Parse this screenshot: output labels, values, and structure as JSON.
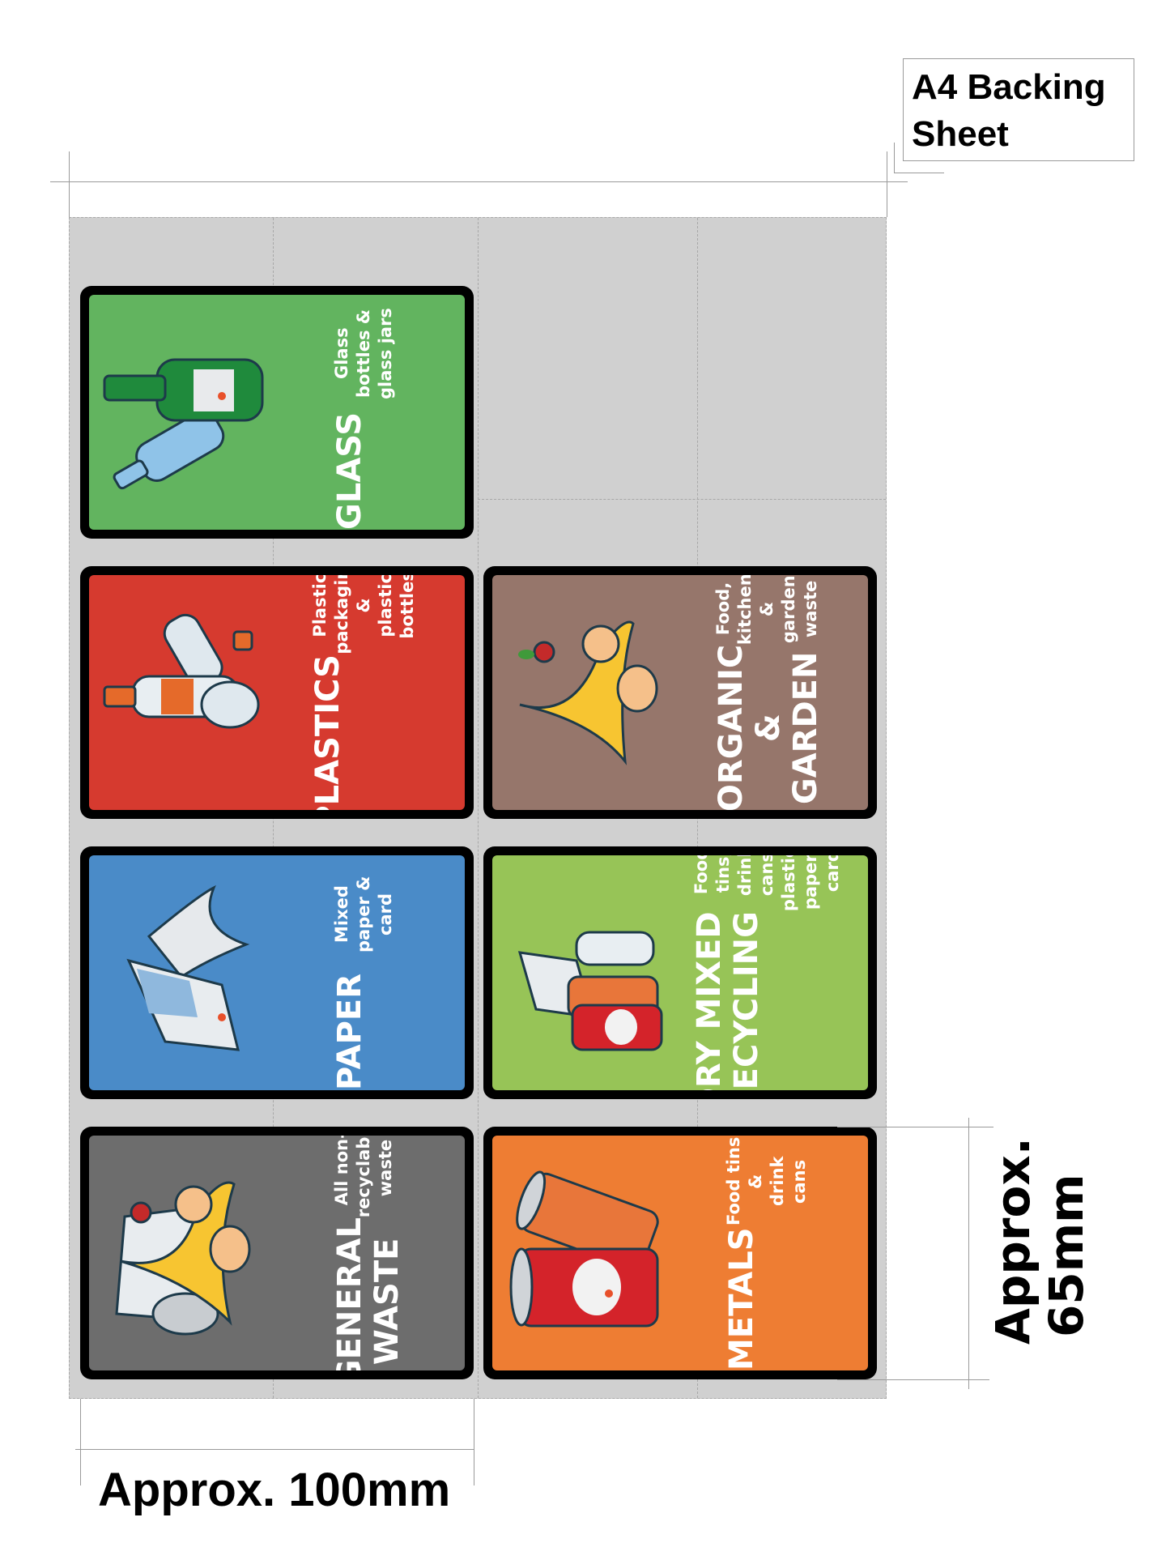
{
  "sheet_label": "A4 Backing\nSheet",
  "width_label": "Approx. 100mm",
  "height_label": "Approx.\n65mm",
  "cards": [
    {
      "title": "GLASS",
      "subtitle": "Glass bottles &\nglass jars",
      "color": "#62b45f",
      "icon": "glass-bottles-illustration"
    },
    {
      "title": "PLASTICS",
      "subtitle": "Plastic packaging &\nplastic bottles",
      "color": "#d63a2f",
      "icon": "plastic-bottles-illustration"
    },
    {
      "title": "ORGANIC\n& GARDEN",
      "subtitle": "Food, kitchen &\ngarden waste",
      "color": "#96766b",
      "icon": "food-waste-illustration"
    },
    {
      "title": "PAPER",
      "subtitle": "Mixed paper & card",
      "color": "#4a8bc8",
      "icon": "newspaper-illustration"
    },
    {
      "title": "DRY MIXED\nRECYCLING",
      "subtitle": "Food tins, drink cans,\nplastics, paper & card",
      "color": "#97c457",
      "icon": "mixed-recycling-illustration"
    },
    {
      "title": "GENERAL\nWASTE",
      "subtitle": "All non-recyclable\nwaste",
      "color": "#6d6d6d",
      "icon": "general-waste-illustration"
    },
    {
      "title": "METALS",
      "subtitle": "Food tins &\ndrink cans",
      "color": "#ee7d33",
      "icon": "drink-cans-illustration"
    }
  ]
}
